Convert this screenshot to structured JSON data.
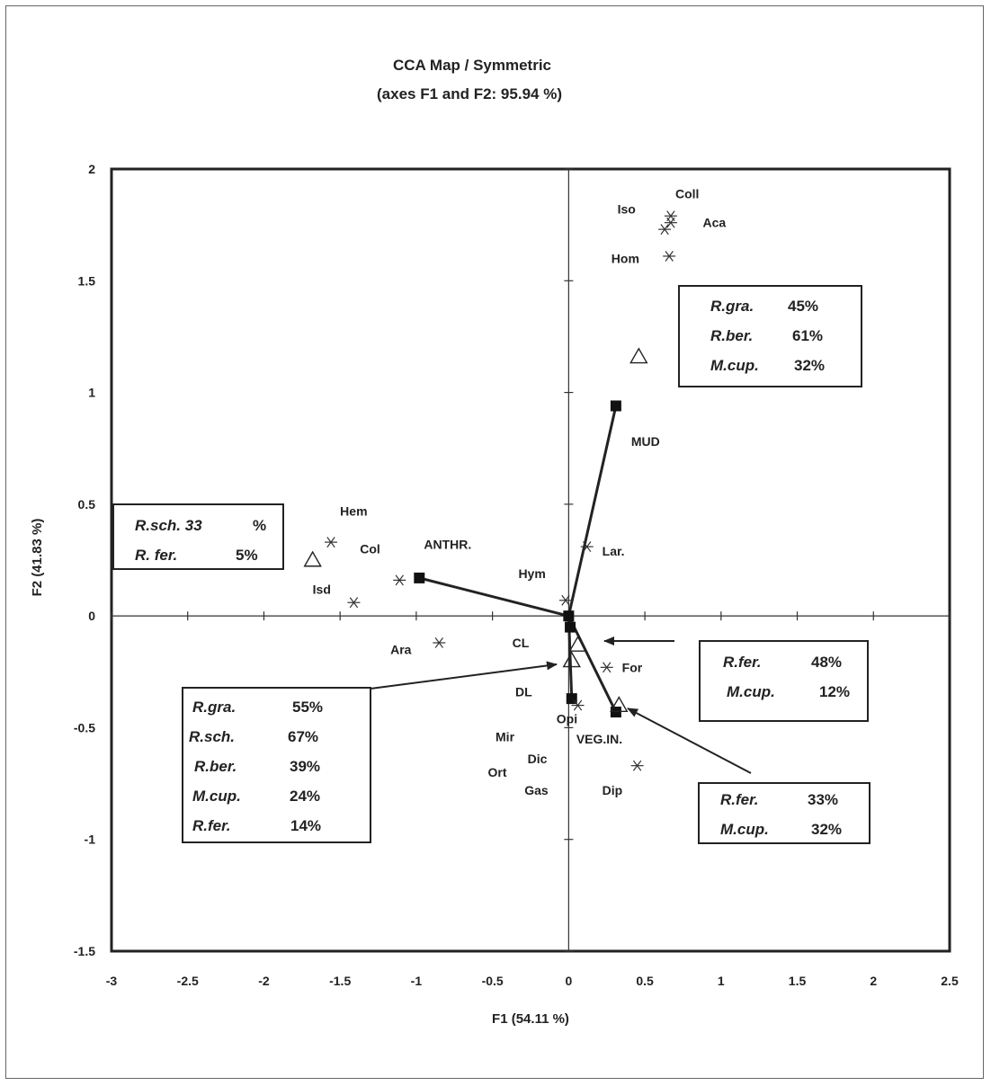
{
  "chart_data": {
    "type": "scatter",
    "title": "CCA Map / Symmetric",
    "subtitle": "(axes F1 and F2: 95.94 %)",
    "xlabel": "F1 (54.11 %)",
    "ylabel": "F2 (41.83 %)",
    "xlim": [
      -3,
      2.5
    ],
    "ylim": [
      -1.5,
      2
    ],
    "xticks": [
      "-3",
      "-2.5",
      "-2",
      "-1.5",
      "-1",
      "-0.5",
      "0",
      "0.5",
      "1",
      "1.5",
      "2",
      "2.5"
    ],
    "yticks": [
      "2",
      "1.5",
      "1",
      "0.5",
      "0",
      "-0.5",
      "-1",
      "-1.5"
    ],
    "grid": false,
    "taxa": [
      {
        "label": "Coll",
        "x": 0.67,
        "y": 1.79,
        "lx": 0.7,
        "ly": 1.87
      },
      {
        "label": "Iso",
        "x": 0.63,
        "y": 1.73,
        "lx": 0.32,
        "ly": 1.8
      },
      {
        "label": "Aca",
        "x": 0.67,
        "y": 1.76,
        "lx": 0.88,
        "ly": 1.74
      },
      {
        "label": "Hom",
        "x": 0.66,
        "y": 1.61,
        "lx": 0.28,
        "ly": 1.58
      },
      {
        "label": "Hem",
        "x": -1.56,
        "y": 0.33,
        "lx": -1.5,
        "ly": 0.45
      },
      {
        "label": "Col",
        "x": -1.11,
        "y": 0.16,
        "lx": -1.37,
        "ly": 0.28
      },
      {
        "label": "Isd",
        "x": -1.41,
        "y": 0.06,
        "lx": -1.68,
        "ly": 0.1
      },
      {
        "label": "Lar.",
        "x": 0.12,
        "y": 0.31,
        "lx": 0.22,
        "ly": 0.27
      },
      {
        "label": "Hym",
        "x": -0.02,
        "y": 0.07,
        "lx": -0.33,
        "ly": 0.17
      },
      {
        "label": "Ara",
        "x": -0.85,
        "y": -0.12,
        "lx": -1.17,
        "ly": -0.17
      },
      {
        "label": "For",
        "x": 0.25,
        "y": -0.23,
        "lx": 0.35,
        "ly": -0.25
      },
      {
        "label": "Opi",
        "x": 0.06,
        "y": -0.4,
        "lx": -0.08,
        "ly": -0.48
      },
      {
        "label": "Mir",
        "x": null,
        "y": null,
        "lx": -0.48,
        "ly": -0.56
      },
      {
        "label": "Dic",
        "x": null,
        "y": null,
        "lx": -0.27,
        "ly": -0.66
      },
      {
        "label": "Ort",
        "x": null,
        "y": null,
        "lx": -0.53,
        "ly": -0.72
      },
      {
        "label": "Gas",
        "x": null,
        "y": null,
        "lx": -0.29,
        "ly": -0.8
      },
      {
        "label": "Dip",
        "x": 0.45,
        "y": -0.67,
        "lx": 0.22,
        "ly": -0.8
      }
    ],
    "sites": [
      {
        "x": -1.68,
        "y": 0.25
      },
      {
        "x": 0.46,
        "y": 1.16
      },
      {
        "x": 0.06,
        "y": -0.13
      },
      {
        "x": 0.02,
        "y": -0.2
      },
      {
        "x": 0.33,
        "y": -0.4
      }
    ],
    "variables": [
      {
        "label": "MUD",
        "x": 0.31,
        "y": 0.94,
        "lx": 0.41,
        "ly": 0.76
      },
      {
        "label": "ANTHR.",
        "x": -0.98,
        "y": 0.17,
        "lx": -0.95,
        "ly": 0.3
      },
      {
        "label": "CL",
        "x": 0.01,
        "y": -0.05,
        "lx": -0.37,
        "ly": -0.14
      },
      {
        "label": "DL",
        "x": 0.02,
        "y": -0.37,
        "lx": -0.35,
        "ly": -0.36
      },
      {
        "label": "VEG.IN.",
        "x": 0.31,
        "y": -0.43,
        "lx": 0.05,
        "ly": -0.57
      }
    ],
    "origin": {
      "x": 0,
      "y": 0
    }
  },
  "boxes": [
    {
      "id": "box-mud",
      "rows": [
        {
          "sp": "R.gra.",
          "val": "45%"
        },
        {
          "sp": "R.ber.",
          "val": "61%"
        },
        {
          "sp": "M.cup.",
          "val": "32%"
        }
      ]
    },
    {
      "id": "box-anthr",
      "rows": [
        {
          "sp": "R.sch. 33",
          "val": "%"
        },
        {
          "sp": "R. fer.",
          "val": "5%"
        }
      ]
    },
    {
      "id": "box-cl",
      "rows": [
        {
          "sp": "R.fer.",
          "val": "48%"
        },
        {
          "sp": "M.cup.",
          "val": "12%"
        }
      ]
    },
    {
      "id": "box-dl",
      "rows": [
        {
          "sp": "R.gra.",
          "val": "55%"
        },
        {
          "sp": "R.sch.",
          "val": "67%"
        },
        {
          "sp": "R.ber.",
          "val": "39%"
        },
        {
          "sp": "M.cup.",
          "val": "24%"
        },
        {
          "sp": "R.fer.",
          "val": "14%"
        }
      ]
    },
    {
      "id": "box-veg",
      "rows": [
        {
          "sp": "R.fer.",
          "val": "33%"
        },
        {
          "sp": "M.cup.",
          "val": "32%"
        }
      ]
    }
  ]
}
